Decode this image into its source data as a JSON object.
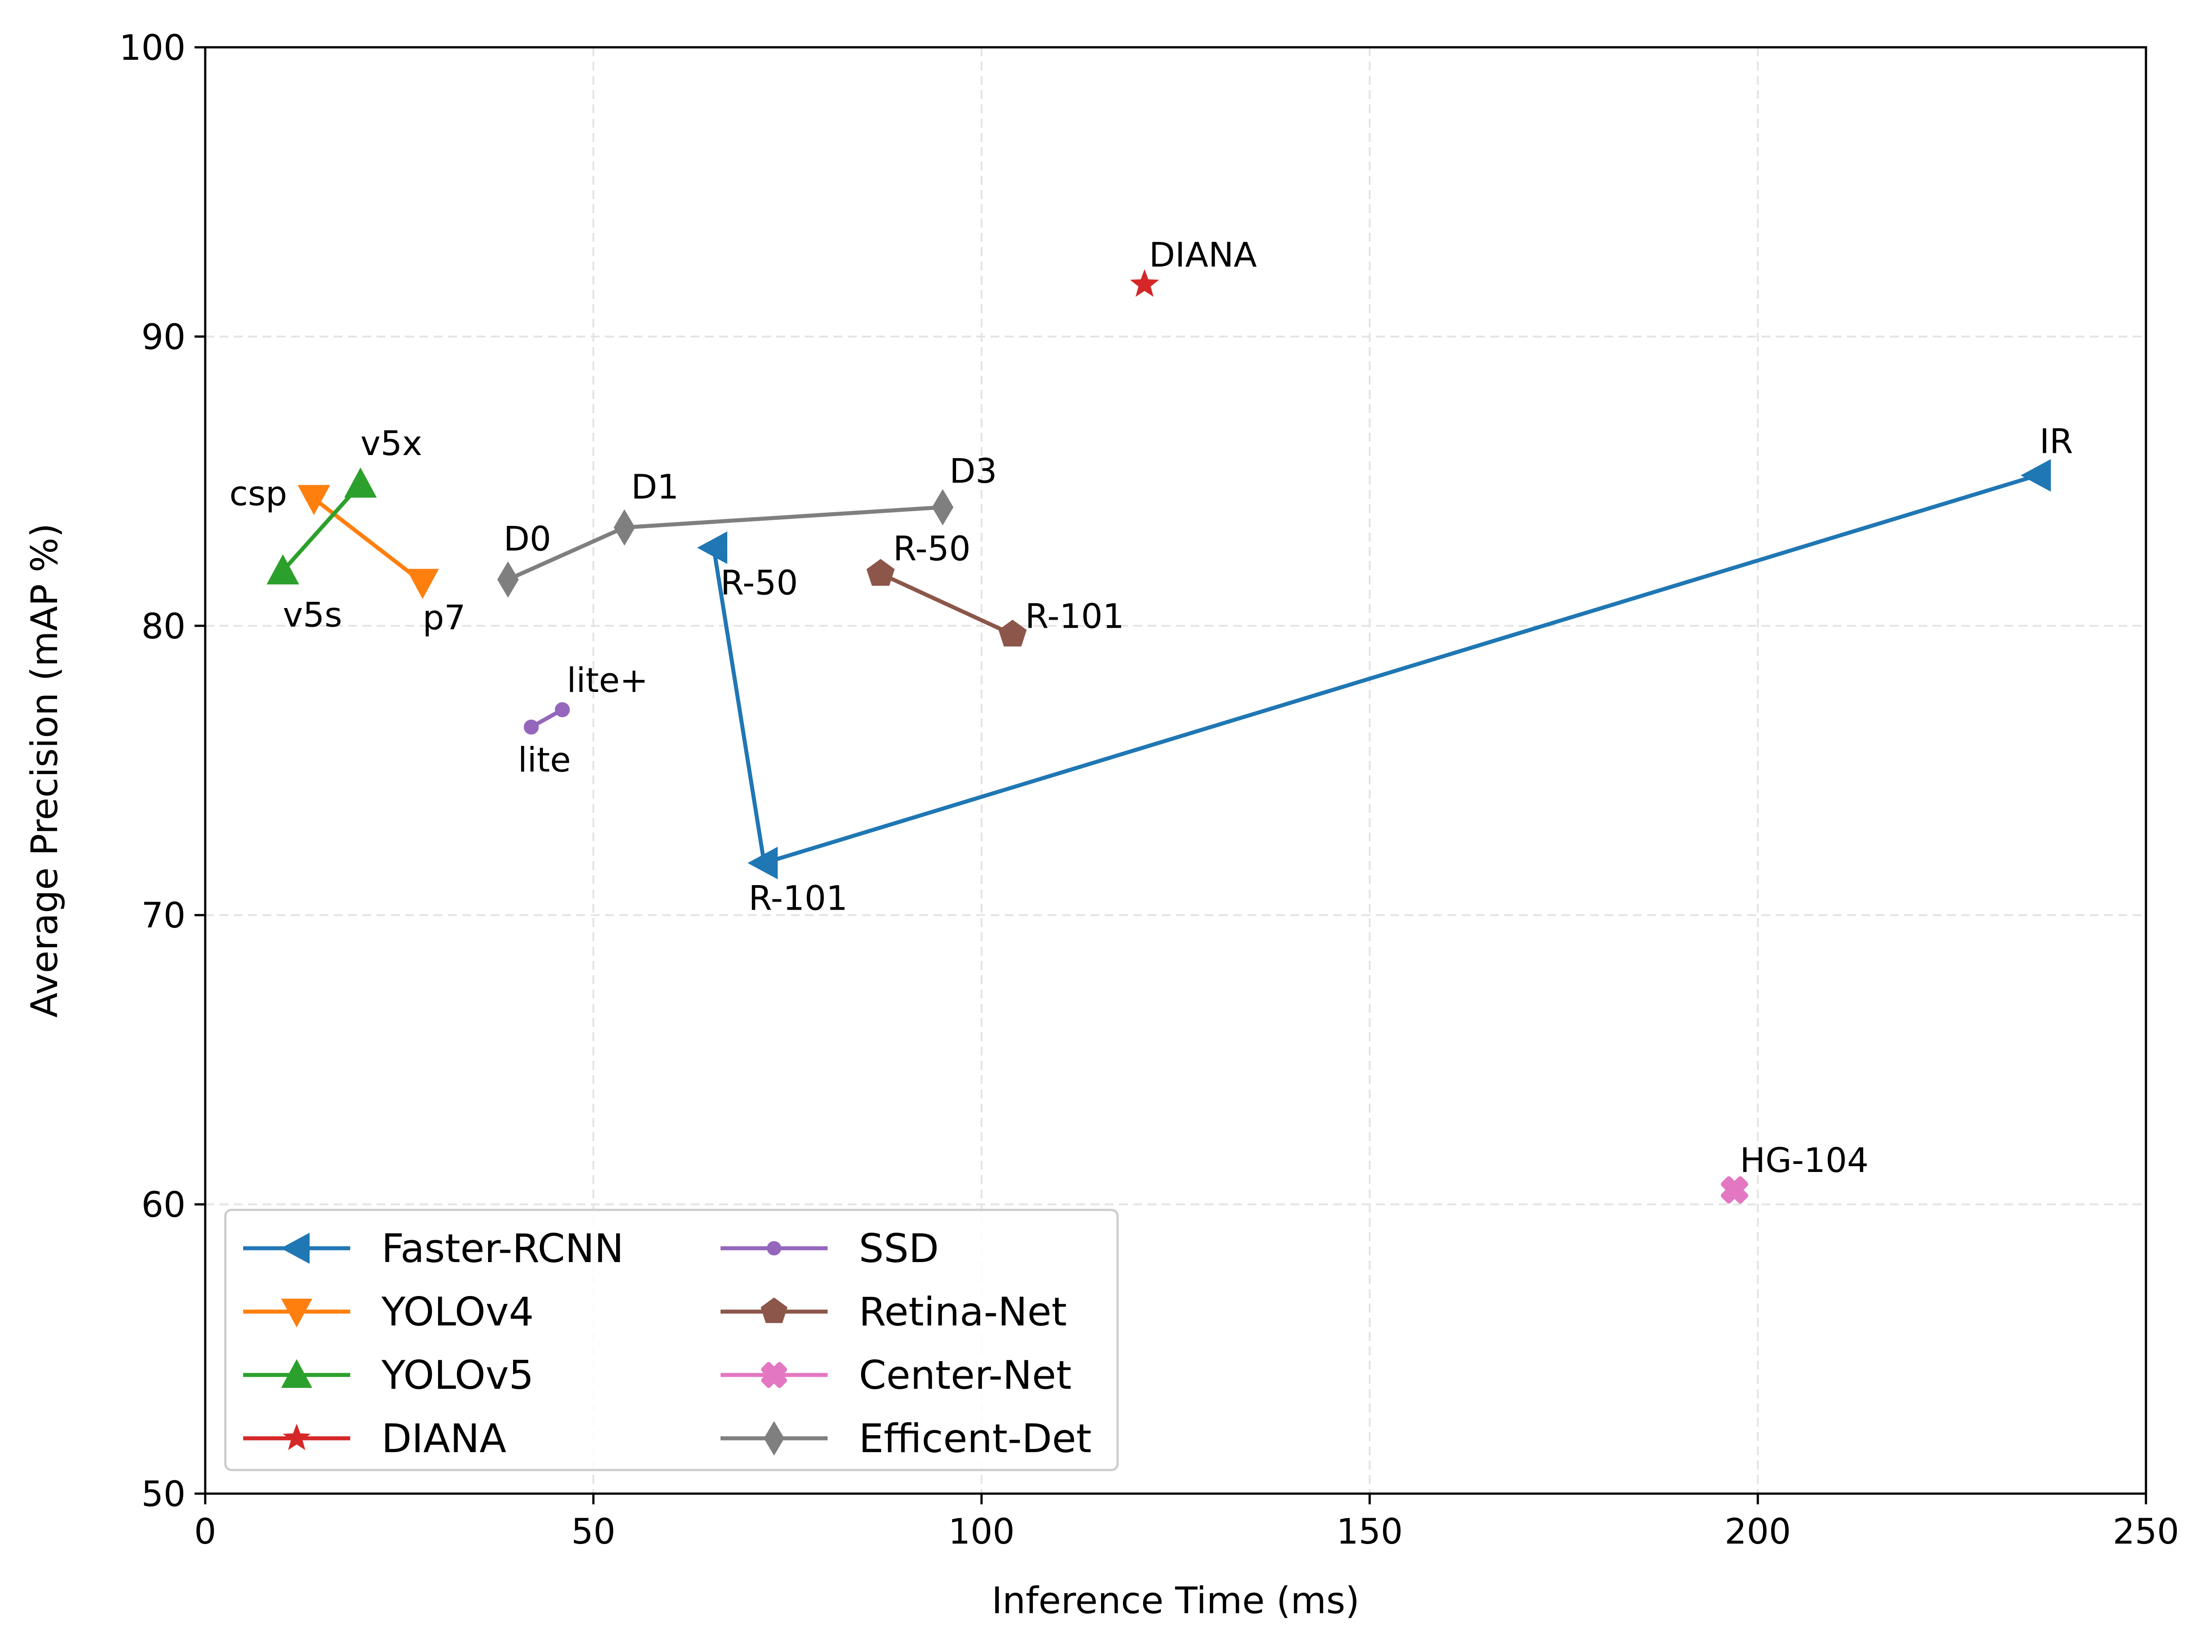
{
  "chart_data": {
    "type": "line",
    "title": "",
    "xlabel": "Inference Time (ms)",
    "ylabel": "Average Precision (mAP %)",
    "xlim": [
      0,
      250
    ],
    "ylim": [
      50,
      100
    ],
    "xticks": [
      0,
      50,
      100,
      150,
      200,
      250
    ],
    "yticks": [
      50,
      60,
      70,
      80,
      90,
      100
    ],
    "grid": true,
    "legend": {
      "placement": "lower-left",
      "columns": 2
    },
    "series": [
      {
        "name": "Faster-RCNN",
        "color": "#1f77b4",
        "marker": "triangle-left",
        "points": [
          {
            "x": 65.5,
            "y": 82.7,
            "label": "R-50"
          },
          {
            "x": 72.0,
            "y": 71.8,
            "label": "R-101"
          },
          {
            "x": 236.0,
            "y": 85.2,
            "label": "IR"
          }
        ]
      },
      {
        "name": "YOLOv4",
        "color": "#ff7f0e",
        "marker": "triangle-down",
        "points": [
          {
            "x": 14.0,
            "y": 84.4,
            "label": "csp"
          },
          {
            "x": 28.0,
            "y": 81.5,
            "label": "p7"
          }
        ]
      },
      {
        "name": "YOLOv5",
        "color": "#2ca02c",
        "marker": "triangle-up",
        "points": [
          {
            "x": 10.0,
            "y": 81.9,
            "label": "v5s"
          },
          {
            "x": 20.0,
            "y": 84.9,
            "label": "v5x"
          }
        ]
      },
      {
        "name": "DIANA",
        "color": "#d62728",
        "marker": "star",
        "points": [
          {
            "x": 121.0,
            "y": 91.8,
            "label": "DIANA"
          }
        ]
      },
      {
        "name": "SSD",
        "color": "#9467bd",
        "marker": "dot",
        "points": [
          {
            "x": 42.0,
            "y": 76.5,
            "label": "lite"
          },
          {
            "x": 46.0,
            "y": 77.1,
            "label": "lite+"
          }
        ]
      },
      {
        "name": "Retina-Net",
        "color": "#8c564b",
        "marker": "pentagon",
        "points": [
          {
            "x": 87.0,
            "y": 81.8,
            "label": "R-50"
          },
          {
            "x": 104.0,
            "y": 79.7,
            "label": "R-101"
          }
        ]
      },
      {
        "name": "Center-Net",
        "color": "#e377c2",
        "marker": "x-filled",
        "points": [
          {
            "x": 197.0,
            "y": 60.5,
            "label": "HG-104"
          }
        ]
      },
      {
        "name": "Efficent-Det",
        "color": "#7f7f7f",
        "marker": "thin-diamond",
        "points": [
          {
            "x": 39.0,
            "y": 81.6,
            "label": "D0"
          },
          {
            "x": 54.0,
            "y": 83.4,
            "label": "D1"
          },
          {
            "x": 95.0,
            "y": 84.1,
            "label": "D3"
          }
        ]
      }
    ]
  }
}
